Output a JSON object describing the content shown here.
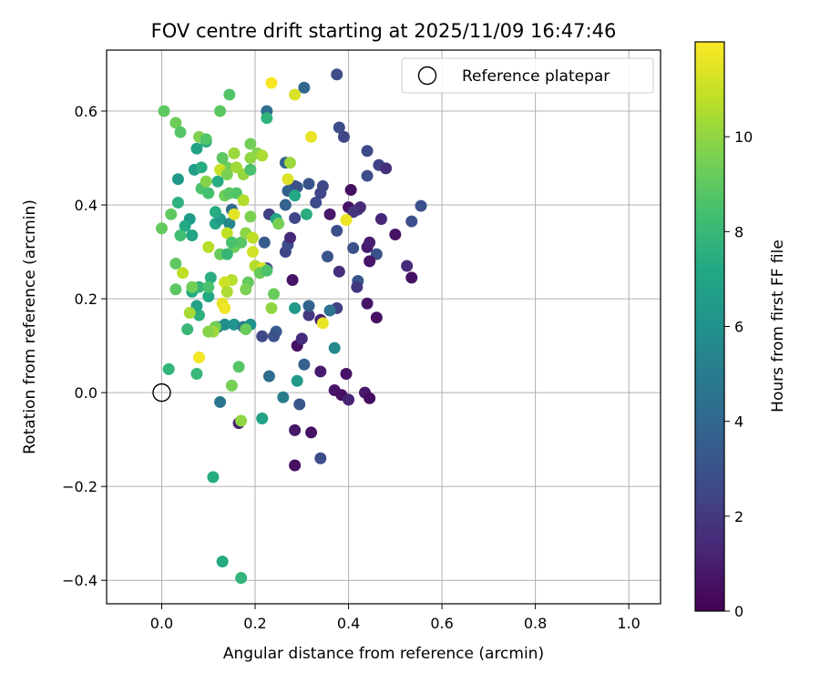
{
  "chart_data": {
    "type": "scatter",
    "title": "FOV centre drift starting at 2025/11/09 16:47:46",
    "xlabel": "Angular distance from reference (arcmin)",
    "ylabel": "Rotation from reference (arcmin)",
    "xlim": [
      -0.118,
      1.068
    ],
    "ylim": [
      -0.45,
      0.73
    ],
    "grid": true,
    "x_ticks": [
      0.0,
      0.2,
      0.4,
      0.6,
      0.8,
      1.0
    ],
    "x_tick_labels": [
      "0.0",
      "0.2",
      "0.4",
      "0.6",
      "0.8",
      "1.0"
    ],
    "y_ticks": [
      -0.4,
      -0.2,
      0.0,
      0.2,
      0.4,
      0.6
    ],
    "y_tick_labels": [
      "−0.4",
      "−0.2",
      "0.0",
      "0.2",
      "0.4",
      "0.6"
    ],
    "legend": {
      "label": "Reference platepar",
      "location": "top-right"
    },
    "reference_point": {
      "x": 0.0,
      "y": 0.0
    },
    "colorbar": {
      "label": "Hours from first FF file",
      "range": [
        0,
        12
      ],
      "ticks": [
        0,
        2,
        4,
        6,
        8,
        10
      ],
      "tick_labels": [
        "0",
        "2",
        "4",
        "6",
        "8",
        "10"
      ],
      "colormap": "viridis"
    },
    "points": [
      [
        0.285,
        -0.155,
        0.5
      ],
      [
        0.285,
        -0.08,
        0.8
      ],
      [
        0.32,
        -0.085,
        0.6
      ],
      [
        0.34,
        -0.14,
        2.8
      ],
      [
        0.295,
        -0.025,
        3.2
      ],
      [
        0.28,
        0.24,
        0.7
      ],
      [
        0.29,
        0.1,
        0.6
      ],
      [
        0.3,
        0.115,
        1.5
      ],
      [
        0.34,
        0.045,
        0.9
      ],
      [
        0.37,
        0.005,
        0.7
      ],
      [
        0.385,
        -0.005,
        0.5
      ],
      [
        0.395,
        0.04,
        0.6
      ],
      [
        0.4,
        -0.015,
        1.2
      ],
      [
        0.435,
        0.0,
        0.8
      ],
      [
        0.445,
        -0.012,
        0.4
      ],
      [
        0.38,
        0.565,
        2.8
      ],
      [
        0.39,
        0.545,
        2.5
      ],
      [
        0.44,
        0.515,
        2.7
      ],
      [
        0.465,
        0.485,
        2.4
      ],
      [
        0.48,
        0.478,
        1.6
      ],
      [
        0.44,
        0.462,
        2.9
      ],
      [
        0.375,
        0.678,
        2.8
      ],
      [
        0.4,
        0.395,
        0.6
      ],
      [
        0.405,
        0.432,
        0.5
      ],
      [
        0.42,
        0.39,
        2.3
      ],
      [
        0.425,
        0.395,
        1.4
      ],
      [
        0.41,
        0.385,
        1.8
      ],
      [
        0.36,
        0.38,
        0.8
      ],
      [
        0.375,
        0.345,
        2.9
      ],
      [
        0.41,
        0.308,
        3.0
      ],
      [
        0.44,
        0.31,
        0.9
      ],
      [
        0.445,
        0.32,
        1.0
      ],
      [
        0.46,
        0.295,
        3.1
      ],
      [
        0.445,
        0.28,
        0.7
      ],
      [
        0.47,
        0.37,
        1.3
      ],
      [
        0.5,
        0.337,
        0.6
      ],
      [
        0.525,
        0.27,
        1.5
      ],
      [
        0.535,
        0.245,
        0.6
      ],
      [
        0.535,
        0.365,
        2.9
      ],
      [
        0.555,
        0.398,
        2.9
      ],
      [
        0.42,
        0.238,
        3.3
      ],
      [
        0.418,
        0.225,
        1.9
      ],
      [
        0.38,
        0.258,
        1.6
      ],
      [
        0.355,
        0.29,
        3.1
      ],
      [
        0.44,
        0.19,
        0.7
      ],
      [
        0.46,
        0.16,
        0.5
      ],
      [
        0.375,
        0.18,
        2.3
      ],
      [
        0.36,
        0.175,
        4.5
      ],
      [
        0.34,
        0.155,
        1.2
      ],
      [
        0.315,
        0.165,
        1.9
      ],
      [
        0.315,
        0.185,
        3.8
      ],
      [
        0.305,
        0.06,
        3.6
      ],
      [
        0.37,
        0.095,
        5.6
      ],
      [
        0.33,
        0.405,
        2.8
      ],
      [
        0.34,
        0.425,
        2.4
      ],
      [
        0.345,
        0.44,
        2.6
      ],
      [
        0.315,
        0.445,
        3.1
      ],
      [
        0.29,
        0.438,
        3.4
      ],
      [
        0.285,
        0.44,
        3.0
      ],
      [
        0.265,
        0.4,
        3.7
      ],
      [
        0.27,
        0.43,
        3.6
      ],
      [
        0.285,
        0.372,
        2.5
      ],
      [
        0.265,
        0.3,
        2.5
      ],
      [
        0.27,
        0.315,
        2.8
      ],
      [
        0.275,
        0.33,
        1.4
      ],
      [
        0.265,
        0.49,
        3.8
      ],
      [
        0.305,
        0.65,
        4.1
      ],
      [
        0.225,
        0.6,
        4.3
      ],
      [
        0.23,
        0.38,
        2.2
      ],
      [
        0.22,
        0.32,
        3.4
      ],
      [
        0.225,
        0.265,
        2.7
      ],
      [
        0.245,
        0.13,
        3.5
      ],
      [
        0.24,
        0.12,
        3.0
      ],
      [
        0.215,
        0.12,
        2.6
      ],
      [
        0.23,
        0.035,
        4.3
      ],
      [
        0.26,
        -0.01,
        5.0
      ],
      [
        0.29,
        0.025,
        6.4
      ],
      [
        0.285,
        0.18,
        6.5
      ],
      [
        0.225,
        0.585,
        7.8
      ],
      [
        0.245,
        0.37,
        7.1
      ],
      [
        0.31,
        0.38,
        7.5
      ],
      [
        0.285,
        0.42,
        7.2
      ],
      [
        0.215,
        -0.055,
        6.9
      ],
      [
        0.125,
        -0.02,
        4.6
      ],
      [
        0.165,
        -0.065,
        1.2
      ],
      [
        0.11,
        -0.18,
        7.4
      ],
      [
        0.13,
        -0.36,
        7.3
      ],
      [
        0.17,
        -0.395,
        7.8
      ],
      [
        0.165,
        0.055,
        8.8
      ],
      [
        0.075,
        0.04,
        8.0
      ],
      [
        0.11,
        0.13,
        7.0
      ],
      [
        0.12,
        0.14,
        5.3
      ],
      [
        0.135,
        0.145,
        5.8
      ],
      [
        0.155,
        0.145,
        6.2
      ],
      [
        0.175,
        0.14,
        4.7
      ],
      [
        0.19,
        0.145,
        6.0
      ],
      [
        0.08,
        0.165,
        7.6
      ],
      [
        0.055,
        0.135,
        8.0
      ],
      [
        0.075,
        0.185,
        6.9
      ],
      [
        0.065,
        0.215,
        7.3
      ],
      [
        0.08,
        0.225,
        7.8
      ],
      [
        0.1,
        0.205,
        7.2
      ],
      [
        0.105,
        0.245,
        7.5
      ],
      [
        0.1,
        0.225,
        8.5
      ],
      [
        0.115,
        0.36,
        7.1
      ],
      [
        0.125,
        0.37,
        6.4
      ],
      [
        0.145,
        0.36,
        5.5
      ],
      [
        0.15,
        0.39,
        4.2
      ],
      [
        0.115,
        0.385,
        7.4
      ],
      [
        0.06,
        0.37,
        6.5
      ],
      [
        0.05,
        0.355,
        7.2
      ],
      [
        0.035,
        0.405,
        7.6
      ],
      [
        0.035,
        0.455,
        6.3
      ],
      [
        0.07,
        0.475,
        6.6
      ],
      [
        0.075,
        0.52,
        6.9
      ],
      [
        0.085,
        0.48,
        7.4
      ],
      [
        0.095,
        0.535,
        7.3
      ],
      [
        0.065,
        0.335,
        7.0
      ],
      [
        0.04,
        0.335,
        8.3
      ],
      [
        0.02,
        0.38,
        9.0
      ],
      [
        0.045,
        0.255,
        10.8
      ],
      [
        0.03,
        0.275,
        9.0
      ],
      [
        0.03,
        0.22,
        8.9
      ],
      [
        0.0,
        0.35,
        9.1
      ],
      [
        0.005,
        0.6,
        9.0
      ],
      [
        0.03,
        0.575,
        9.3
      ],
      [
        0.04,
        0.555,
        8.8
      ],
      [
        0.08,
        0.545,
        9.7
      ],
      [
        0.095,
        0.54,
        8.7
      ],
      [
        0.085,
        0.435,
        8.5
      ],
      [
        0.095,
        0.45,
        9.8
      ],
      [
        0.1,
        0.425,
        8.4
      ],
      [
        0.12,
        0.45,
        7.4
      ],
      [
        0.125,
        0.6,
        8.9
      ],
      [
        0.145,
        0.635,
        8.7
      ],
      [
        0.14,
        0.48,
        9.3
      ],
      [
        0.13,
        0.5,
        9.0
      ],
      [
        0.125,
        0.475,
        11.0
      ],
      [
        0.14,
        0.465,
        9.6
      ],
      [
        0.135,
        0.42,
        9.3
      ],
      [
        0.145,
        0.425,
        8.9
      ],
      [
        0.16,
        0.425,
        8.7
      ],
      [
        0.175,
        0.41,
        10.6
      ],
      [
        0.16,
        0.48,
        10.3
      ],
      [
        0.175,
        0.465,
        10.1
      ],
      [
        0.155,
        0.51,
        10.2
      ],
      [
        0.19,
        0.53,
        9.4
      ],
      [
        0.205,
        0.51,
        9.8
      ],
      [
        0.215,
        0.505,
        10.5
      ],
      [
        0.19,
        0.5,
        10.0
      ],
      [
        0.19,
        0.475,
        8.5
      ],
      [
        0.155,
        0.38,
        11.5
      ],
      [
        0.14,
        0.34,
        10.9
      ],
      [
        0.155,
        0.31,
        9.3
      ],
      [
        0.17,
        0.32,
        8.8
      ],
      [
        0.18,
        0.34,
        9.9
      ],
      [
        0.195,
        0.33,
        10.8
      ],
      [
        0.19,
        0.375,
        9.6
      ],
      [
        0.195,
        0.3,
        11.2
      ],
      [
        0.2,
        0.27,
        10.6
      ],
      [
        0.215,
        0.265,
        11.4
      ],
      [
        0.21,
        0.255,
        9.2
      ],
      [
        0.185,
        0.235,
        9.1
      ],
      [
        0.18,
        0.22,
        9.6
      ],
      [
        0.15,
        0.24,
        10.7
      ],
      [
        0.135,
        0.235,
        11.1
      ],
      [
        0.14,
        0.215,
        10.5
      ],
      [
        0.13,
        0.19,
        11.6
      ],
      [
        0.135,
        0.18,
        11.7
      ],
      [
        0.115,
        0.14,
        9.4
      ],
      [
        0.11,
        0.13,
        10.3
      ],
      [
        0.1,
        0.31,
        10.7
      ],
      [
        0.06,
        0.17,
        10.4
      ],
      [
        0.08,
        0.075,
        11.8
      ],
      [
        0.015,
        0.05,
        7.8
      ],
      [
        0.15,
        0.015,
        9.5
      ],
      [
        0.17,
        -0.06,
        10.0
      ],
      [
        0.18,
        0.135,
        9.2
      ],
      [
        0.235,
        0.18,
        10.0
      ],
      [
        0.24,
        0.21,
        9.2
      ],
      [
        0.25,
        0.36,
        9.5
      ],
      [
        0.27,
        0.455,
        11.4
      ],
      [
        0.275,
        0.49,
        10.2
      ],
      [
        0.285,
        0.635,
        11.3
      ],
      [
        0.235,
        0.66,
        11.9
      ],
      [
        0.32,
        0.545,
        11.6
      ],
      [
        0.395,
        0.368,
        11.7
      ],
      [
        0.345,
        0.148,
        11.6
      ],
      [
        0.065,
        0.225,
        9.4
      ],
      [
        0.1,
        0.13,
        9.8
      ],
      [
        0.125,
        0.295,
        9.2
      ],
      [
        0.14,
        0.295,
        7.9
      ],
      [
        0.15,
        0.32,
        8.5
      ],
      [
        0.225,
        0.26,
        8.6
      ]
    ]
  }
}
